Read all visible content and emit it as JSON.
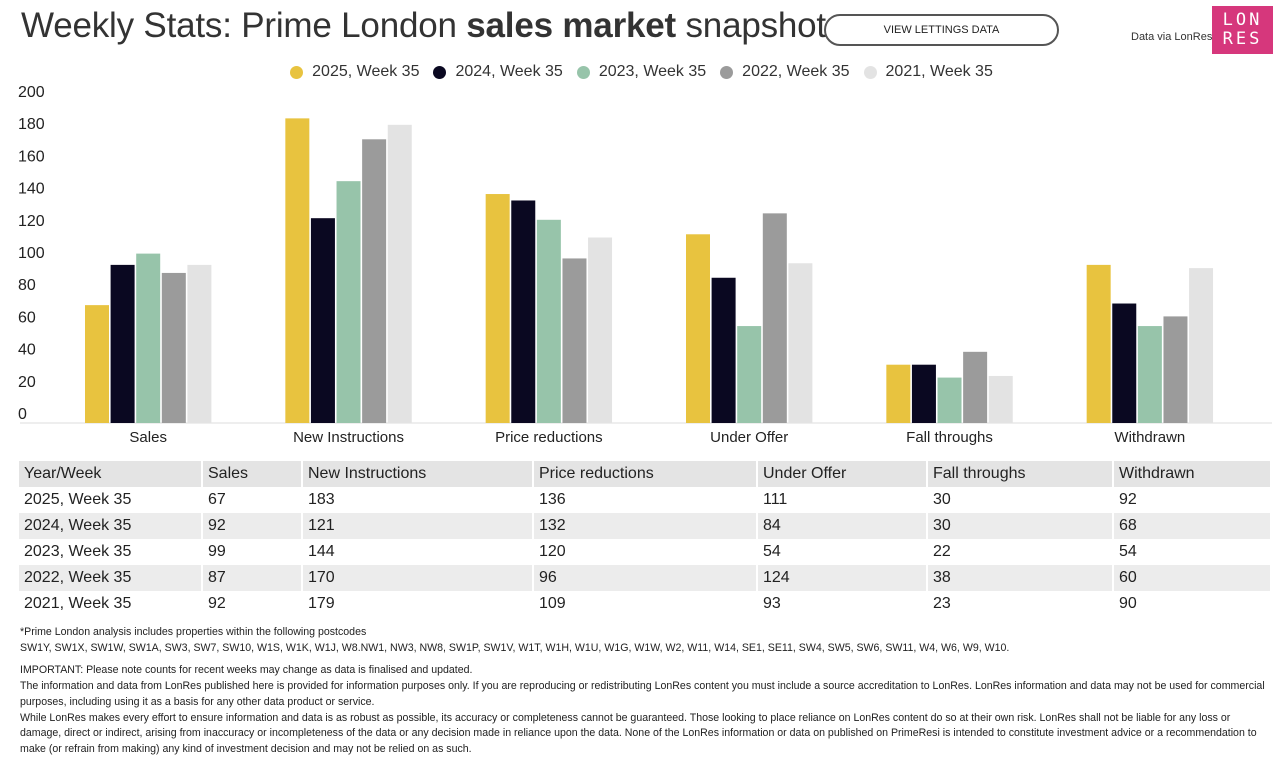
{
  "header": {
    "title_prefix": "Weekly Stats: Prime London ",
    "title_bold": "sales market",
    "title_suffix": " snapshot",
    "lettings_button": "VIEW LETTINGS DATA",
    "credit": "Data via LonRes",
    "logo_line1": "LON",
    "logo_line2": "RES"
  },
  "colors": {
    "2025": "#e8c33f",
    "2024": "#0a0821",
    "2023": "#97c4aa",
    "2022": "#9b9b9b",
    "2021": "#e3e3e3"
  },
  "chart_data": {
    "type": "bar",
    "title": "Weekly Stats: Prime London sales market snapshot",
    "xlabel": "",
    "ylabel": "",
    "ylim": [
      0,
      200
    ],
    "yticks": [
      0,
      20,
      40,
      60,
      80,
      100,
      120,
      140,
      160,
      180,
      200
    ],
    "grid": false,
    "legend_position": "top-center",
    "categories": [
      "Sales",
      "New Instructions",
      "Price reductions",
      "Under Offer",
      "Fall throughs",
      "Withdrawn"
    ],
    "series": [
      {
        "name": "2025, Week 35",
        "color": "#e8c33f",
        "values": [
          67,
          183,
          136,
          111,
          30,
          92
        ]
      },
      {
        "name": "2024, Week 35",
        "color": "#0a0821",
        "values": [
          92,
          121,
          132,
          84,
          30,
          68
        ]
      },
      {
        "name": "2023, Week 35",
        "color": "#97c4aa",
        "values": [
          99,
          144,
          120,
          54,
          22,
          54
        ]
      },
      {
        "name": "2022, Week 35",
        "color": "#9b9b9b",
        "values": [
          87,
          170,
          96,
          124,
          38,
          60
        ]
      },
      {
        "name": "2021, Week 35",
        "color": "#e3e3e3",
        "values": [
          92,
          179,
          109,
          93,
          23,
          90
        ]
      }
    ]
  },
  "table": {
    "headers": [
      "Year/Week",
      "Sales",
      "New Instructions",
      "Price reductions",
      "Under Offer",
      "Fall throughs",
      "Withdrawn"
    ],
    "rows": [
      [
        "2025, Week 35",
        "67",
        "183",
        "136",
        "111",
        "30",
        "92"
      ],
      [
        "2024, Week 35",
        "92",
        "121",
        "132",
        "84",
        "30",
        "68"
      ],
      [
        "2023, Week 35",
        "99",
        "144",
        "120",
        "54",
        "22",
        "54"
      ],
      [
        "2022, Week 35",
        "87",
        "170",
        "96",
        "124",
        "38",
        "60"
      ],
      [
        "2021, Week 35",
        "92",
        "179",
        "109",
        "93",
        "23",
        "90"
      ]
    ]
  },
  "notes": {
    "postcode_intro": "*Prime London analysis includes properties within the following postcodes",
    "postcodes": "SW1Y, SW1X, SW1W, SW1A, SW3, SW7, SW10, W1S, W1K, W1J, W8.NW1, NW3, NW8, SW1P, SW1V, W1T, W1H, W1U, W1G, W1W, W2, W11, W14, SE1, SE11, SW4, SW5, SW6, SW11, W4, W6, W9, W10.",
    "important": "IMPORTANT: Please note counts for recent weeks may change as data is finalised and updated.",
    "disclaimer1": "The information and data from LonRes published here is provided for information purposes only. If you are reproducing or redistributing LonRes content you must include a source accreditation to LonRes. LonRes information and data may not be used for commercial purposes, including using it as a basis for any other data product or service.",
    "disclaimer2": "While LonRes makes every effort to ensure information and data is as robust as possible, its accuracy or completeness cannot be guaranteed. Those looking to place reliance on LonRes content do so at their own risk. LonRes shall not be liable for any loss or damage, direct or indirect, arising from inaccuracy or incompleteness of the data or any decision made in reliance upon the data. None of the LonRes information or data on published on PrimeResi is intended to constitute investment advice or a recommendation to make (or refrain from making) any kind of investment decision and may not be relied on as such."
  }
}
